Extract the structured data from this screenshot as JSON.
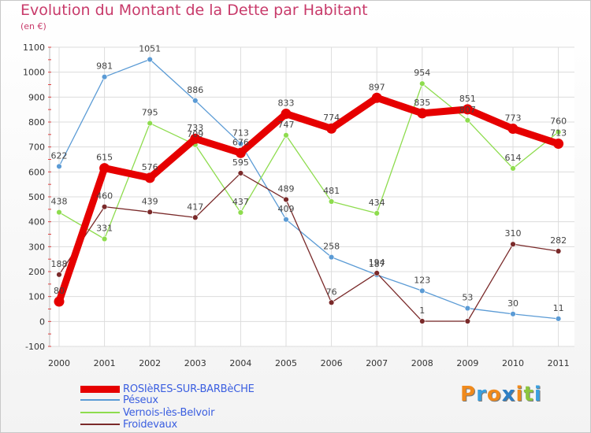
{
  "header": {
    "title": "Evolution du Montant de la Dette par Habitant",
    "subtitle": "(en €)"
  },
  "logo": {
    "text": "Proxiti",
    "colors": [
      "#f08a1c",
      "#3aa0e0",
      "#f08a1c",
      "#2e7fc4",
      "#f08a1c",
      "#8cc63e",
      "#3aa0e0"
    ]
  },
  "chart_data": {
    "type": "line",
    "x": [
      "2000",
      "2001",
      "2002",
      "2003",
      "2004",
      "2005",
      "2006",
      "2007",
      "2008",
      "2009",
      "2010",
      "2011"
    ],
    "ylim": [
      -100,
      1100
    ],
    "yticks": [
      -100,
      0,
      100,
      200,
      300,
      400,
      500,
      600,
      700,
      800,
      900,
      1000,
      1100
    ],
    "grid": true,
    "legend_position": "bottom",
    "series": [
      {
        "name": "ROSIèRES-SUR-BARBèCHE",
        "color": "#e60000",
        "width": 9,
        "values": [
          80,
          615,
          576,
          733,
          676,
          833,
          774,
          897,
          835,
          851,
          773,
          713
        ]
      },
      {
        "name": "Péseux",
        "color": "#5b9bd5",
        "width": 1.3,
        "values": [
          622,
          981,
          1051,
          886,
          713,
          409,
          258,
          187,
          123,
          53,
          30,
          11
        ]
      },
      {
        "name": "Vernois-lès-Belvoir",
        "color": "#8edc4e",
        "width": 1.3,
        "values": [
          438,
          331,
          795,
          709,
          437,
          747,
          481,
          434,
          954,
          807,
          614,
          760
        ]
      },
      {
        "name": "Froidevaux",
        "color": "#7a2a2a",
        "width": 1.3,
        "values": [
          188,
          460,
          439,
          417,
          595,
          489,
          76,
          194,
          1,
          1,
          310,
          282
        ]
      }
    ],
    "value_labels": [
      [
        "80",
        "615",
        "576",
        "733",
        "676",
        "833",
        "774",
        "897",
        "835",
        "851",
        "773",
        "713"
      ],
      [
        "622",
        "981",
        "1051",
        "886",
        "713",
        "409",
        "258",
        "187",
        "123",
        "53",
        "30",
        "11"
      ],
      [
        "438",
        "331",
        "795",
        "709",
        "437",
        "747",
        "481",
        "434",
        "954",
        "807",
        "614",
        "760"
      ],
      [
        "188",
        "460",
        "439",
        "417",
        "595",
        "489",
        "76",
        "194",
        "1",
        "",
        "310",
        "282"
      ]
    ]
  }
}
